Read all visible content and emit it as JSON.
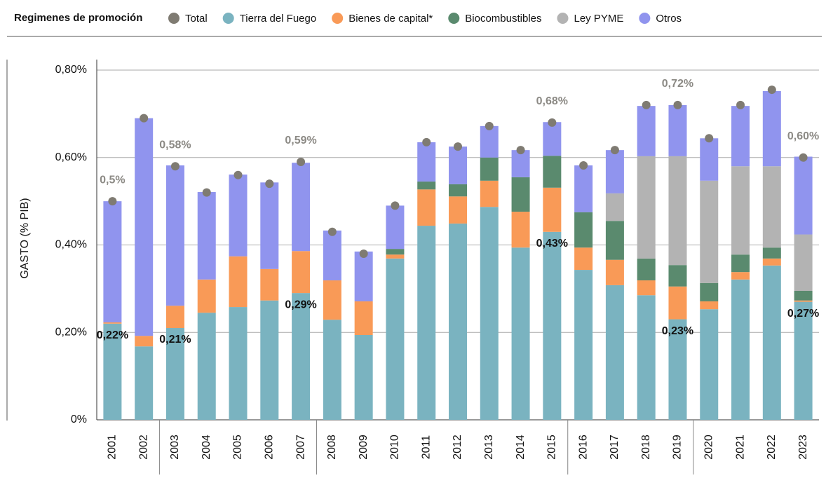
{
  "chart_data": {
    "type": "bar",
    "stacked": true,
    "legend_title": "Regimenes de promoción",
    "y_label": "GASTO (% PIB)",
    "categories": [
      "2001",
      "2002",
      "2003",
      "2004",
      "2005",
      "2006",
      "2007",
      "2008",
      "2009",
      "2010",
      "2011",
      "2012",
      "2013",
      "2014",
      "2015",
      "2016",
      "2017",
      "2018",
      "2019",
      "2020",
      "2021",
      "2022",
      "2023"
    ],
    "series": [
      {
        "name": "Total",
        "color": "#7f7b72",
        "stacked": false,
        "values": [
          0.5,
          0.69,
          0.58,
          0.52,
          0.56,
          0.54,
          0.59,
          0.43,
          0.38,
          0.49,
          0.635,
          0.625,
          0.672,
          0.617,
          0.68,
          0.582,
          0.617,
          0.72,
          0.72,
          0.644,
          0.72,
          0.755,
          0.6
        ],
        "value_labels": [
          "0,5%",
          null,
          "0,58%",
          null,
          null,
          null,
          "0,59%",
          null,
          null,
          null,
          null,
          null,
          null,
          null,
          "0,68%",
          null,
          null,
          null,
          "0,72%",
          null,
          null,
          null,
          "0,60%"
        ]
      },
      {
        "name": "Tierra del Fuego",
        "color": "#7ab3c0",
        "values": [
          0.22,
          0.168,
          0.21,
          0.245,
          0.258,
          0.273,
          0.29,
          0.229,
          0.194,
          0.369,
          0.444,
          0.449,
          0.487,
          0.394,
          0.43,
          0.343,
          0.308,
          0.285,
          0.23,
          0.253,
          0.321,
          0.353,
          0.27
        ],
        "value_labels": [
          "0,22%",
          null,
          "0,21%",
          null,
          null,
          null,
          "0,29%",
          null,
          null,
          null,
          null,
          null,
          null,
          null,
          "0,43%",
          null,
          null,
          null,
          "0,23%",
          null,
          null,
          null,
          "0,27%"
        ]
      },
      {
        "name": "Bienes de capital*",
        "color": "#f99a57",
        "values": [
          0.003,
          0.024,
          0.051,
          0.076,
          0.116,
          0.072,
          0.096,
          0.09,
          0.077,
          0.009,
          0.083,
          0.062,
          0.06,
          0.082,
          0.101,
          0.051,
          0.058,
          0.034,
          0.075,
          0.018,
          0.017,
          0.016,
          0.003
        ]
      },
      {
        "name": "Biocombustibles",
        "color": "#5a8a6e",
        "values": [
          0,
          0,
          0,
          0,
          0,
          0,
          0,
          0,
          0,
          0.013,
          0.018,
          0.028,
          0.053,
          0.079,
          0.073,
          0.081,
          0.089,
          0.05,
          0.049,
          0.042,
          0.04,
          0.025,
          0.022
        ]
      },
      {
        "name": "Ley PYME",
        "color": "#b3b3b3",
        "values": [
          0,
          0,
          0,
          0,
          0,
          0,
          0,
          0,
          0,
          0,
          0,
          0,
          0,
          0,
          0,
          0,
          0.063,
          0.234,
          0.249,
          0.234,
          0.202,
          0.186,
          0.129
        ]
      },
      {
        "name": "Otros",
        "color": "#9094ee",
        "values": [
          0.277,
          0.498,
          0.321,
          0.2,
          0.187,
          0.198,
          0.202,
          0.114,
          0.114,
          0.099,
          0.09,
          0.086,
          0.072,
          0.062,
          0.077,
          0.107,
          0.099,
          0.115,
          0.117,
          0.097,
          0.138,
          0.172,
          0.178
        ]
      }
    ],
    "ylim": [
      0,
      0.8
    ],
    "yticks": [
      {
        "value": 0,
        "label": "0%"
      },
      {
        "value": 0.2,
        "label": "0,20%"
      },
      {
        "value": 0.4,
        "label": "0,40%"
      },
      {
        "value": 0.6,
        "label": "0,60%"
      },
      {
        "value": 0.8,
        "label": "0,80%"
      }
    ],
    "grid": true
  }
}
